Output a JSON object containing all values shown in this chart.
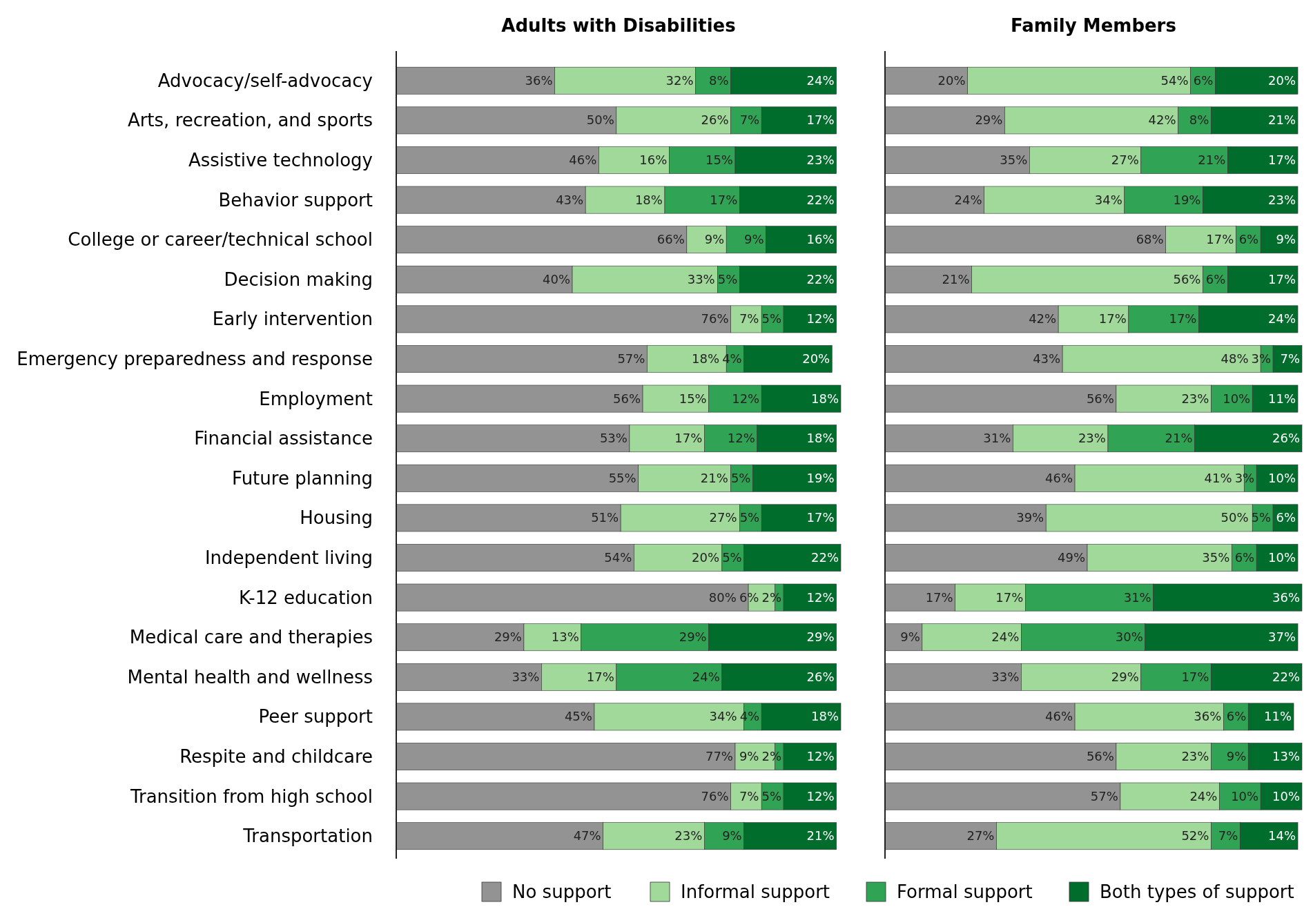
{
  "chart_data": [
    {
      "type": "bar",
      "orientation": "horizontal",
      "stacked": true,
      "title": "Adults with Disabilities",
      "categories": [
        "Advocacy/self-advocacy",
        "Arts, recreation, and sports",
        "Assistive technology",
        "Behavior support",
        "College or career/technical school",
        "Decision making",
        "Early intervention",
        "Emergency preparedness and response",
        "Employment",
        "Financial assistance",
        "Future planning",
        "Housing",
        "Independent living",
        "K-12 education",
        "Medical care and therapies",
        "Mental health and wellness",
        "Peer support",
        "Respite and childcare",
        "Transition from high school",
        "Transportation"
      ],
      "series": [
        {
          "name": "No support",
          "color": "#939393",
          "values": [
            36,
            50,
            46,
            43,
            66,
            40,
            76,
            57,
            56,
            53,
            55,
            51,
            54,
            80,
            29,
            33,
            45,
            77,
            76,
            47
          ],
          "value_labels": [
            "36%",
            "50%",
            "46%",
            "43%",
            "66%",
            "40%",
            "76%",
            "57%",
            "56%",
            "53%",
            "55%",
            "51%",
            "54%",
            "80%",
            "29%",
            "33%",
            "45%",
            "77%",
            "76%",
            "47%"
          ]
        },
        {
          "name": "Informal support",
          "color": "#a1d99b",
          "values": [
            32,
            26,
            16,
            18,
            9,
            33,
            7,
            18,
            15,
            17,
            21,
            27,
            20,
            6,
            13,
            17,
            34,
            9,
            7,
            23
          ],
          "value_labels": [
            "32%",
            "26%",
            "16%",
            "18%",
            "9%",
            "33%",
            "7%",
            "18%",
            "15%",
            "17%",
            "21%",
            "27%",
            "20%",
            "6%",
            "13%",
            "17%",
            "34%",
            "9%",
            "7%",
            "23%"
          ]
        },
        {
          "name": "Formal support",
          "color": "#31a354",
          "values": [
            8,
            7,
            15,
            17,
            9,
            5,
            5,
            4,
            12,
            12,
            5,
            5,
            5,
            2,
            29,
            24,
            4,
            2,
            5,
            9
          ],
          "value_labels": [
            "8%",
            "7%",
            "15%",
            "17%",
            "9%",
            "5%",
            "5%",
            "4%",
            "12%",
            "12%",
            "5%",
            "5%",
            "5%",
            "2%",
            "29%",
            "24%",
            "4%",
            "2%",
            "5%",
            "9%"
          ]
        },
        {
          "name": "Both types of support",
          "color": "#006d2c",
          "values": [
            24,
            17,
            23,
            22,
            16,
            22,
            12,
            20,
            18,
            18,
            19,
            17,
            22,
            12,
            29,
            26,
            18,
            12,
            12,
            21
          ],
          "value_labels": [
            "24%",
            "17%",
            "23%",
            "22%",
            "16%",
            "22%",
            "12%",
            "20%",
            "18%",
            "18%",
            "19%",
            "17%",
            "22%",
            "12%",
            "29%",
            "26%",
            "18%",
            "12%",
            "12%",
            "21%"
          ]
        }
      ],
      "tick_labels": "y",
      "legend": "bottom"
    },
    {
      "type": "bar",
      "orientation": "horizontal",
      "stacked": true,
      "title": "Family Members",
      "categories": [
        null,
        null,
        null,
        null,
        null,
        null,
        null,
        null,
        null,
        null,
        null,
        null,
        null,
        null,
        null,
        null,
        null,
        null,
        null,
        null
      ],
      "series": [
        {
          "color": "#939393",
          "values": [
            20,
            29,
            35,
            24,
            68,
            21,
            42,
            43,
            56,
            31,
            46,
            39,
            49,
            17,
            9,
            33,
            46,
            56,
            57,
            27
          ],
          "value_labels": [
            "20%",
            "29%",
            "35%",
            "24%",
            "68%",
            "21%",
            "42%",
            "43%",
            "56%",
            "31%",
            "46%",
            "39%",
            "49%",
            "17%",
            "9%",
            "33%",
            "46%",
            "56%",
            "57%",
            "27%"
          ]
        },
        {
          "color": "#a1d99b",
          "values": [
            54,
            42,
            27,
            34,
            17,
            56,
            17,
            48,
            23,
            23,
            41,
            50,
            35,
            17,
            24,
            29,
            36,
            23,
            24,
            52
          ],
          "value_labels": [
            "54%",
            "42%",
            "27%",
            "34%",
            "17%",
            "56%",
            "17%",
            "48%",
            "23%",
            "23%",
            "41%",
            "50%",
            "35%",
            "17%",
            "24%",
            "29%",
            "36%",
            "23%",
            "24%",
            "52%"
          ]
        },
        {
          "color": "#31a354",
          "values": [
            6,
            8,
            21,
            19,
            6,
            6,
            17,
            3,
            10,
            21,
            3,
            5,
            6,
            31,
            30,
            17,
            6,
            9,
            10,
            7
          ],
          "value_labels": [
            "6%",
            "8%",
            "21%",
            "19%",
            "6%",
            "6%",
            "17%",
            "3%",
            "10%",
            "21%",
            "3%",
            "5%",
            "6%",
            "31%",
            "30%",
            "17%",
            "6%",
            "9%",
            "10%",
            "7%"
          ]
        },
        {
          "color": "#006d2c",
          "values": [
            20,
            21,
            17,
            23,
            9,
            17,
            24,
            7,
            11,
            26,
            10,
            6,
            10,
            36,
            37,
            22,
            11,
            13,
            10,
            14
          ],
          "value_labels": [
            "20%",
            "21%",
            "17%",
            "23%",
            "9%",
            "17%",
            "24%",
            "7%",
            "11%",
            "26%",
            "10%",
            "6%",
            "10%",
            "36%",
            "37%",
            "22%",
            "11%",
            "13%",
            "10%",
            "14%"
          ]
        }
      ],
      "tick_labels": false
    }
  ]
}
